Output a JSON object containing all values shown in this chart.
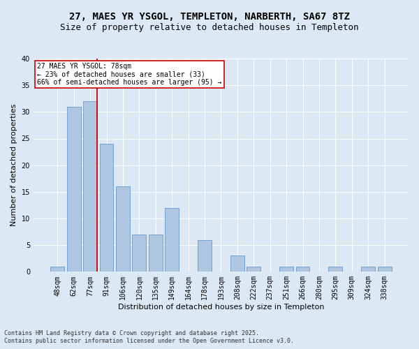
{
  "title_line1": "27, MAES YR YSGOL, TEMPLETON, NARBERTH, SA67 8TZ",
  "title_line2": "Size of property relative to detached houses in Templeton",
  "xlabel": "Distribution of detached houses by size in Templeton",
  "ylabel": "Number of detached properties",
  "categories": [
    "48sqm",
    "62sqm",
    "77sqm",
    "91sqm",
    "106sqm",
    "120sqm",
    "135sqm",
    "149sqm",
    "164sqm",
    "178sqm",
    "193sqm",
    "208sqm",
    "222sqm",
    "237sqm",
    "251sqm",
    "266sqm",
    "280sqm",
    "295sqm",
    "309sqm",
    "324sqm",
    "338sqm"
  ],
  "values": [
    1,
    31,
    32,
    24,
    16,
    7,
    7,
    12,
    0,
    6,
    0,
    3,
    1,
    0,
    1,
    1,
    0,
    1,
    0,
    1,
    1
  ],
  "bar_color": "#aec6df",
  "bar_edge_color": "#6699cc",
  "vline_color": "#cc0000",
  "annotation_text": "27 MAES YR YSGOL: 78sqm\n← 23% of detached houses are smaller (33)\n66% of semi-detached houses are larger (95) →",
  "annotation_box_color": "#ffffff",
  "annotation_box_edge": "#cc0000",
  "ylim": [
    0,
    40
  ],
  "yticks": [
    0,
    5,
    10,
    15,
    20,
    25,
    30,
    35,
    40
  ],
  "footer_line1": "Contains HM Land Registry data © Crown copyright and database right 2025.",
  "footer_line2": "Contains public sector information licensed under the Open Government Licence v3.0.",
  "bg_color": "#dde8f5",
  "plot_bg_color": "#dde8f5",
  "title_fontsize": 10,
  "subtitle_fontsize": 9,
  "tick_fontsize": 7,
  "ylabel_fontsize": 8,
  "xlabel_fontsize": 8,
  "footer_fontsize": 6,
  "vline_bar_index": 2
}
